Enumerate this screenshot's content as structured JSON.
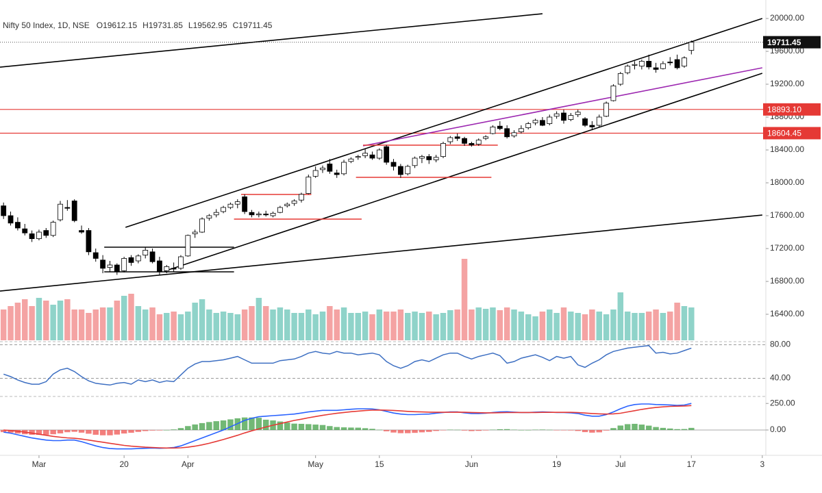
{
  "chart_data": {
    "type": "candlestick",
    "title": "Nifty 50 Index, 1D, NSE",
    "ohlc_labels": [
      "O",
      "H",
      "L",
      "C"
    ],
    "candles": [
      [
        17720,
        17760,
        17560,
        17600
      ],
      [
        17600,
        17650,
        17480,
        17510
      ],
      [
        17520,
        17580,
        17420,
        17450
      ],
      [
        17440,
        17500,
        17360,
        17390
      ],
      [
        17380,
        17420,
        17280,
        17320
      ],
      [
        17320,
        17430,
        17300,
        17400
      ],
      [
        17420,
        17450,
        17330,
        17360
      ],
      [
        17360,
        17540,
        17340,
        17520
      ],
      [
        17550,
        17780,
        17530,
        17740
      ],
      [
        17700,
        17790,
        17660,
        17690
      ],
      [
        17780,
        17800,
        17520,
        17540
      ],
      [
        17420,
        17480,
        17380,
        17400
      ],
      [
        17420,
        17450,
        17120,
        17160
      ],
      [
        17150,
        17200,
        17040,
        17080
      ],
      [
        17060,
        17120,
        16900,
        16960
      ],
      [
        16970,
        17050,
        16920,
        17000
      ],
      [
        17000,
        17020,
        16880,
        16920
      ],
      [
        16930,
        17100,
        16910,
        17080
      ],
      [
        17090,
        17120,
        16990,
        17030
      ],
      [
        17050,
        17130,
        17020,
        17110
      ],
      [
        17120,
        17220,
        17080,
        17180
      ],
      [
        17160,
        17200,
        17020,
        17040
      ],
      [
        17050,
        17100,
        16880,
        16920
      ],
      [
        16930,
        17000,
        16900,
        16980
      ],
      [
        16960,
        17030,
        16920,
        16950
      ],
      [
        16960,
        17120,
        16940,
        17100
      ],
      [
        17110,
        17370,
        17100,
        17360
      ],
      [
        17380,
        17430,
        17330,
        17400
      ],
      [
        17400,
        17580,
        17390,
        17560
      ],
      [
        17570,
        17620,
        17540,
        17600
      ],
      [
        17610,
        17680,
        17580,
        17640
      ],
      [
        17650,
        17720,
        17630,
        17700
      ],
      [
        17700,
        17760,
        17680,
        17740
      ],
      [
        17740,
        17800,
        17690,
        17770
      ],
      [
        17830,
        17860,
        17620,
        17650
      ],
      [
        17640,
        17670,
        17580,
        17610
      ],
      [
        17610,
        17650,
        17580,
        17620
      ],
      [
        17620,
        17660,
        17590,
        17610
      ],
      [
        17600,
        17650,
        17580,
        17630
      ],
      [
        17640,
        17720,
        17630,
        17700
      ],
      [
        17720,
        17760,
        17700,
        17740
      ],
      [
        17750,
        17800,
        17720,
        17780
      ],
      [
        17790,
        17880,
        17760,
        17860
      ],
      [
        17870,
        18100,
        17860,
        18070
      ],
      [
        18080,
        18200,
        18060,
        18150
      ],
      [
        18160,
        18210,
        18120,
        18180
      ],
      [
        18230,
        18290,
        18110,
        18140
      ],
      [
        18120,
        18160,
        18060,
        18100
      ],
      [
        18110,
        18280,
        18090,
        18250
      ],
      [
        18260,
        18310,
        18240,
        18290
      ],
      [
        18310,
        18340,
        18280,
        18320
      ],
      [
        18330,
        18410,
        18300,
        18360
      ],
      [
        18340,
        18380,
        18280,
        18300
      ],
      [
        18300,
        18420,
        18280,
        18400
      ],
      [
        18440,
        18460,
        18220,
        18250
      ],
      [
        18250,
        18290,
        18150,
        18200
      ],
      [
        18200,
        18230,
        18060,
        18100
      ],
      [
        18110,
        18220,
        18090,
        18200
      ],
      [
        18210,
        18320,
        18180,
        18300
      ],
      [
        18300,
        18340,
        18240,
        18320
      ],
      [
        18320,
        18350,
        18230,
        18280
      ],
      [
        18280,
        18340,
        18250,
        18310
      ],
      [
        18320,
        18500,
        18300,
        18480
      ],
      [
        18500,
        18570,
        18470,
        18550
      ],
      [
        18560,
        18600,
        18510,
        18540
      ],
      [
        18540,
        18560,
        18450,
        18480
      ],
      [
        18480,
        18500,
        18440,
        18460
      ],
      [
        18470,
        18540,
        18450,
        18520
      ],
      [
        18540,
        18580,
        18520,
        18560
      ],
      [
        18600,
        18700,
        18590,
        18680
      ],
      [
        18690,
        18750,
        18640,
        18660
      ],
      [
        18660,
        18700,
        18540,
        18560
      ],
      [
        18570,
        18640,
        18550,
        18610
      ],
      [
        18620,
        18700,
        18600,
        18660
      ],
      [
        18670,
        18740,
        18650,
        18720
      ],
      [
        18730,
        18780,
        18700,
        18760
      ],
      [
        18760,
        18800,
        18690,
        18700
      ],
      [
        18720,
        18830,
        18700,
        18800
      ],
      [
        18810,
        18870,
        18780,
        18840
      ],
      [
        18850,
        18890,
        18720,
        18760
      ],
      [
        18770,
        18850,
        18750,
        18820
      ],
      [
        18830,
        18890,
        18800,
        18860
      ],
      [
        18780,
        18800,
        18680,
        18700
      ],
      [
        18700,
        18750,
        18640,
        18680
      ],
      [
        18700,
        18830,
        18680,
        18800
      ],
      [
        18810,
        18990,
        18800,
        18970
      ],
      [
        19000,
        19200,
        18990,
        19180
      ],
      [
        19200,
        19350,
        19180,
        19330
      ],
      [
        19340,
        19440,
        19320,
        19420
      ],
      [
        19430,
        19480,
        19380,
        19440
      ],
      [
        19420,
        19500,
        19380,
        19480
      ],
      [
        19480,
        19560,
        19380,
        19410
      ],
      [
        19400,
        19460,
        19340,
        19380
      ],
      [
        19390,
        19480,
        19380,
        19450
      ],
      [
        19470,
        19530,
        19430,
        19460
      ],
      [
        19500,
        19560,
        19380,
        19400
      ],
      [
        19420,
        19540,
        19400,
        19520
      ],
      [
        19612.15,
        19731.85,
        19562.95,
        19711.45
      ]
    ],
    "up_color": "#ffffff",
    "down_color": "#000000",
    "xlim": [
      -0.5,
      107.5
    ],
    "xticks": [
      {
        "value": 5,
        "label": "Mar"
      },
      {
        "value": 17,
        "label": "20"
      },
      {
        "value": 26,
        "label": "Apr"
      },
      {
        "value": 44,
        "label": "May"
      },
      {
        "value": 53,
        "label": "15"
      },
      {
        "value": 66,
        "label": "Jun"
      },
      {
        "value": 78,
        "label": "19"
      },
      {
        "value": 87,
        "label": "Jul"
      },
      {
        "value": 97,
        "label": "17"
      },
      {
        "value": 107,
        "label": "3"
      }
    ],
    "ylim": [
      16100,
      20200
    ],
    "yticks": [
      {
        "value": 16400,
        "label": "16400.00"
      },
      {
        "value": 16800,
        "label": "16800.00"
      },
      {
        "value": 17200,
        "label": "17200.00"
      },
      {
        "value": 17600,
        "label": "17600.00"
      },
      {
        "value": 18000,
        "label": "18000.00"
      },
      {
        "value": 18400,
        "label": "18400.00"
      },
      {
        "value": 18800,
        "label": "18800.00"
      },
      {
        "value": 19200,
        "label": "19200.00"
      },
      {
        "value": 19600,
        "label": "19600.00"
      },
      {
        "value": 20000,
        "label": "20000.00"
      }
    ],
    "grid": false,
    "levels": [
      {
        "value": 18893.1,
        "label": "18893.10",
        "color": "#e53935"
      },
      {
        "value": 18604.45,
        "label": "18604.45",
        "color": "#e53935"
      }
    ],
    "trendlines": [
      {
        "from": [
          -0.5,
          19408
        ],
        "to": [
          76,
          20058
        ],
        "color": "#000000"
      },
      {
        "from": [
          17.2,
          17458
        ],
        "to": [
          107,
          20000
        ],
        "color": "#000000"
      },
      {
        "from": [
          22.7,
          16925
        ],
        "to": [
          107,
          19333
        ],
        "color": "#000000"
      },
      {
        "from": [
          -0.5,
          16683
        ],
        "to": [
          107,
          17608
        ],
        "color": "#000000"
      },
      {
        "from": [
          50.7,
          18450
        ],
        "to": [
          107,
          19400
        ],
        "color": "#9c27b0"
      }
    ],
    "segments": [
      {
        "from": 14.2,
        "to": 32.5,
        "value": 17217,
        "color": "#000000"
      },
      {
        "from": 14.2,
        "to": 32.5,
        "value": 16917,
        "color": "#000000"
      },
      {
        "from": 33.5,
        "to": 43.4,
        "value": 17858,
        "color": "#e53935"
      },
      {
        "from": 32.5,
        "to": 50.5,
        "value": 17558,
        "color": "#e53935"
      },
      {
        "from": 50.7,
        "to": 69.7,
        "value": 18458,
        "color": "#e53935"
      },
      {
        "from": 49.7,
        "to": 68.8,
        "value": 18067,
        "color": "#e53935"
      }
    ],
    "volume": {
      "values": [
        45,
        50,
        55,
        60,
        50,
        62,
        58,
        52,
        58,
        60,
        45,
        45,
        40,
        45,
        48,
        48,
        58,
        65,
        68,
        50,
        45,
        48,
        38,
        40,
        42,
        38,
        42,
        55,
        60,
        45,
        40,
        42,
        40,
        38,
        45,
        50,
        62,
        50,
        45,
        48,
        45,
        40,
        40,
        45,
        38,
        42,
        50,
        45,
        48,
        40,
        40,
        42,
        38,
        45,
        42,
        42,
        45,
        40,
        42,
        40,
        42,
        38,
        40,
        44,
        45,
        119,
        45,
        48,
        46,
        48,
        44,
        48,
        45,
        42,
        38,
        35,
        42,
        45,
        40,
        48,
        42,
        40,
        38,
        45,
        42,
        38,
        45,
        70,
        42,
        40,
        40,
        42,
        45,
        40,
        42,
        55,
        50,
        48
      ],
      "up_color": "#8fd3c9",
      "down_color": "#f4a3a3"
    },
    "rsi": {
      "values": [
        45,
        42,
        38,
        35,
        33,
        33,
        36,
        45,
        50,
        52,
        48,
        42,
        37,
        34,
        33,
        32,
        34,
        35,
        33,
        38,
        36,
        38,
        35,
        37,
        36,
        44,
        52,
        57,
        60,
        60,
        61,
        62,
        64,
        66,
        62,
        58,
        58,
        58,
        58,
        61,
        62,
        63,
        66,
        70,
        72,
        70,
        69,
        72,
        70,
        70,
        68,
        69,
        70,
        68,
        60,
        55,
        52,
        55,
        60,
        62,
        60,
        64,
        68,
        70,
        70,
        66,
        63,
        66,
        68,
        70,
        67,
        58,
        60,
        64,
        66,
        68,
        65,
        61,
        66,
        64,
        66,
        56,
        53,
        58,
        62,
        68,
        72,
        74,
        76,
        77,
        78,
        79,
        70,
        71,
        69,
        70,
        73,
        76
      ],
      "color": "#3d6fc2",
      "ylim": [
        20,
        82
      ],
      "yticks": [
        {
          "value": 80,
          "label": "80.00"
        },
        {
          "value": 40,
          "label": "40.00"
        }
      ]
    },
    "macd": {
      "macd": [
        -20,
        -30,
        -45,
        -60,
        -75,
        -85,
        -95,
        -100,
        -100,
        -95,
        -95,
        -110,
        -130,
        -150,
        -165,
        -175,
        -178,
        -178,
        -178,
        -175,
        -172,
        -170,
        -172,
        -170,
        -165,
        -150,
        -125,
        -100,
        -75,
        -50,
        -25,
        0,
        30,
        60,
        90,
        110,
        125,
        130,
        135,
        140,
        145,
        150,
        160,
        170,
        178,
        185,
        185,
        185,
        190,
        195,
        200,
        200,
        198,
        190,
        175,
        160,
        150,
        145,
        145,
        148,
        150,
        158,
        165,
        170,
        170,
        162,
        155,
        155,
        158,
        165,
        170,
        172,
        168,
        165,
        165,
        168,
        170,
        168,
        165,
        165,
        162,
        155,
        140,
        130,
        130,
        145,
        170,
        200,
        225,
        240,
        245,
        245,
        240,
        238,
        236,
        232,
        235,
        250
      ],
      "signal": [
        0,
        -5,
        -12,
        -20,
        -30,
        -40,
        -50,
        -60,
        -68,
        -74,
        -78,
        -85,
        -95,
        -105,
        -115,
        -125,
        -135,
        -145,
        -152,
        -157,
        -162,
        -165,
        -168,
        -170,
        -170,
        -168,
        -162,
        -152,
        -140,
        -125,
        -108,
        -90,
        -70,
        -50,
        -28,
        -8,
        10,
        28,
        45,
        60,
        75,
        90,
        102,
        115,
        127,
        138,
        148,
        157,
        165,
        172,
        178,
        183,
        187,
        188,
        187,
        184,
        180,
        175,
        172,
        170,
        168,
        167,
        167,
        167,
        168,
        167,
        165,
        163,
        162,
        162,
        163,
        164,
        165,
        165,
        165,
        165,
        166,
        166,
        166,
        166,
        166,
        164,
        160,
        155,
        152,
        150,
        152,
        158,
        170,
        182,
        194,
        204,
        212,
        218,
        222,
        224,
        226,
        230
      ],
      "histogram": [
        -20,
        -25,
        -33,
        -40,
        -45,
        -45,
        -45,
        -40,
        -32,
        -21,
        -17,
        -25,
        -35,
        -45,
        -50,
        -50,
        -43,
        -33,
        -26,
        -18,
        -10,
        -5,
        -4,
        0,
        5,
        18,
        37,
        52,
        65,
        75,
        83,
        90,
        100,
        110,
        118,
        118,
        115,
        97,
        90,
        80,
        70,
        60,
        58,
        55,
        51,
        47,
        37,
        28,
        25,
        23,
        22,
        17,
        11,
        2,
        -12,
        -24,
        -30,
        -30,
        -27,
        -22,
        -18,
        -9,
        -2,
        3,
        2,
        -5,
        -10,
        -8,
        -4,
        3,
        7,
        8,
        3,
        0,
        0,
        3,
        4,
        2,
        -1,
        -1,
        -4,
        -9,
        -20,
        -25,
        -22,
        -5,
        18,
        42,
        55,
        58,
        51,
        41,
        28,
        20,
        14,
        8,
        9,
        20
      ],
      "macd_color": "#2962ff",
      "signal_color": "#e53935",
      "hist_up_color": "#43a047",
      "hist_down_color": "#ef5350",
      "ylim": [
        -200,
        290
      ],
      "yticks": [
        {
          "value": 250,
          "label": "250.00"
        },
        {
          "value": 0,
          "label": "0.00"
        }
      ]
    }
  }
}
